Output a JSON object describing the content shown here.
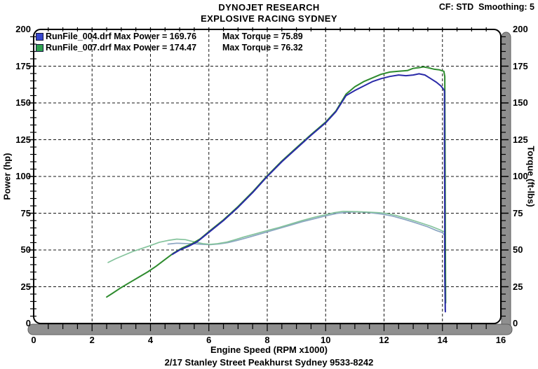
{
  "header": {
    "title": "DYNOJET RESEARCH",
    "subtitle": "EXPLOSIVE RACING SYDNEY",
    "settings": "CF: STD  Smoothing: 5"
  },
  "footer": {
    "address": "2/17 Stanley Street Peakhurst Sydney 9533-8242"
  },
  "chart_data": {
    "type": "line",
    "title": "DYNOJET RESEARCH",
    "subtitle": "EXPLOSIVE RACING SYDNEY",
    "xlabel": "Engine Speed (RPM x1000)",
    "ylabel_left": "Power (hp)",
    "ylabel_right": "Torque (ft-lbs)",
    "xlim": [
      0,
      16
    ],
    "ylim_left": [
      0,
      200
    ],
    "ylim_right": [
      0,
      200
    ],
    "x_major_ticks": [
      0,
      2,
      4,
      6,
      8,
      10,
      12,
      14,
      16
    ],
    "x_minor_step": 0.5,
    "y_major_ticks": [
      0,
      25,
      50,
      75,
      100,
      125,
      150,
      175,
      200
    ],
    "y_minor_step": 5,
    "grid": "dashed",
    "grid_color": "#161616",
    "frame_shadow_color": "#8f8f8f",
    "legend_position": "top-left",
    "legend": [
      {
        "swatch_color": "#3646cf",
        "file": "RunFile_004.drf",
        "power_text": "RunFile_004.drf Max Power = 169.76",
        "torque_text": "Max Torque = 75.89",
        "max_power": 169.76,
        "max_torque": 75.89
      },
      {
        "swatch_color": "#2ea14e",
        "file": "RunFile_007.drf",
        "power_text": "RunFile_007.drf Max Power = 174.47",
        "torque_text": "Max Torque = 76.32",
        "max_power": 174.47,
        "max_torque": 76.32
      }
    ],
    "series": [
      {
        "name": "RunFile_004.drf Torque (ft-lbs)",
        "slug": "torque-curve-runfile-004",
        "color": "#8aa5c2",
        "width": 1.7,
        "points": [
          [
            4.6,
            54
          ],
          [
            4.9,
            54.6
          ],
          [
            5.2,
            54.4
          ],
          [
            5.5,
            54.2
          ],
          [
            5.8,
            53.8
          ],
          [
            6.05,
            53.6
          ],
          [
            6.35,
            54.1
          ],
          [
            6.65,
            55
          ],
          [
            6.95,
            56.4
          ],
          [
            7.25,
            58
          ],
          [
            7.6,
            60
          ],
          [
            8,
            62.3
          ],
          [
            8.4,
            64.6
          ],
          [
            8.8,
            66.9
          ],
          [
            9.2,
            69.2
          ],
          [
            9.6,
            71.2
          ],
          [
            10,
            73.2
          ],
          [
            10.4,
            74.9
          ],
          [
            10.8,
            75.7
          ],
          [
            11.1,
            75.9
          ],
          [
            11.5,
            75.4
          ],
          [
            11.9,
            74.5
          ],
          [
            12.3,
            73
          ],
          [
            12.7,
            70.8
          ],
          [
            13.1,
            68.4
          ],
          [
            13.5,
            65.7
          ],
          [
            13.8,
            63.2
          ],
          [
            14,
            61.8
          ],
          [
            14.05,
            60.5
          ],
          [
            14.07,
            60
          ],
          [
            14.08,
            30
          ],
          [
            14.09,
            9
          ]
        ]
      },
      {
        "name": "RunFile_007.drf Torque (ft-lbs)",
        "slug": "torque-curve-runfile-007",
        "color": "#84c39c",
        "width": 1.7,
        "points": [
          [
            2.55,
            41.5
          ],
          [
            2.8,
            44
          ],
          [
            3.1,
            46.5
          ],
          [
            3.4,
            49
          ],
          [
            3.7,
            51
          ],
          [
            4,
            53
          ],
          [
            4.3,
            55.2
          ],
          [
            4.6,
            56.5
          ],
          [
            4.9,
            57.4
          ],
          [
            5.2,
            57
          ],
          [
            5.5,
            55.5
          ],
          [
            5.8,
            54.3
          ],
          [
            6.05,
            53.8
          ],
          [
            6.3,
            54.3
          ],
          [
            6.6,
            55.3
          ],
          [
            6.9,
            57
          ],
          [
            7.2,
            58.8
          ],
          [
            7.6,
            61
          ],
          [
            8,
            63.2
          ],
          [
            8.4,
            65.3
          ],
          [
            8.8,
            67.6
          ],
          [
            9.2,
            70
          ],
          [
            9.6,
            72.2
          ],
          [
            10,
            74
          ],
          [
            10.3,
            75.4
          ],
          [
            10.6,
            76.3
          ],
          [
            11,
            76.1
          ],
          [
            11.4,
            75.8
          ],
          [
            11.8,
            75.4
          ],
          [
            12.1,
            74.8
          ],
          [
            12.4,
            73.5
          ],
          [
            12.8,
            71.3
          ],
          [
            13.2,
            68.8
          ],
          [
            13.6,
            66.2
          ],
          [
            13.9,
            63.8
          ],
          [
            14.05,
            62.5
          ],
          [
            14.08,
            62
          ],
          [
            14.09,
            40
          ],
          [
            14.1,
            17
          ]
        ]
      },
      {
        "name": "RunFile_007.drf Power (hp)",
        "slug": "power-curve-runfile-007",
        "color": "#2e8b2e",
        "width": 2,
        "points": [
          [
            2.5,
            18
          ],
          [
            2.7,
            20.5
          ],
          [
            3,
            24.5
          ],
          [
            3.3,
            28
          ],
          [
            3.6,
            31.5
          ],
          [
            3.9,
            35
          ],
          [
            4.2,
            39
          ],
          [
            4.5,
            43.5
          ],
          [
            4.8,
            48
          ],
          [
            5.1,
            51.5
          ],
          [
            5.4,
            54
          ],
          [
            5.7,
            57.5
          ],
          [
            6,
            62.5
          ],
          [
            6.5,
            70.5
          ],
          [
            7,
            79.5
          ],
          [
            7.5,
            89.5
          ],
          [
            8,
            100.5
          ],
          [
            8.5,
            110.5
          ],
          [
            9,
            119.5
          ],
          [
            9.5,
            128.5
          ],
          [
            10,
            137
          ],
          [
            10.35,
            144.5
          ],
          [
            10.7,
            156
          ],
          [
            11,
            161
          ],
          [
            11.3,
            164.5
          ],
          [
            11.6,
            167
          ],
          [
            11.9,
            169.5
          ],
          [
            12.2,
            171
          ],
          [
            12.5,
            171.5
          ],
          [
            12.8,
            172
          ],
          [
            13,
            173.5
          ],
          [
            13.2,
            174
          ],
          [
            13.35,
            174.5
          ],
          [
            13.5,
            174
          ],
          [
            13.7,
            173
          ],
          [
            13.9,
            172.5
          ],
          [
            14.05,
            171.5
          ],
          [
            14.08,
            168
          ],
          [
            14.09,
            120
          ],
          [
            14.1,
            60
          ],
          [
            14.11,
            14
          ]
        ]
      },
      {
        "name": "RunFile_004.drf Power (hp)",
        "slug": "power-curve-runfile-004",
        "color": "#2a2aa8",
        "width": 2,
        "points": [
          [
            4.75,
            47
          ],
          [
            5,
            50
          ],
          [
            5.3,
            52.5
          ],
          [
            5.6,
            55.5
          ],
          [
            6,
            62
          ],
          [
            6.5,
            70
          ],
          [
            7,
            79
          ],
          [
            7.5,
            89
          ],
          [
            8,
            100
          ],
          [
            8.5,
            110
          ],
          [
            9,
            119
          ],
          [
            9.5,
            128
          ],
          [
            10,
            136.5
          ],
          [
            10.35,
            144
          ],
          [
            10.7,
            155
          ],
          [
            11,
            158.5
          ],
          [
            11.3,
            161.5
          ],
          [
            11.6,
            164.5
          ],
          [
            11.9,
            166.5
          ],
          [
            12.2,
            168
          ],
          [
            12.5,
            169
          ],
          [
            12.75,
            168.5
          ],
          [
            13,
            169
          ],
          [
            13.2,
            169.8
          ],
          [
            13.4,
            169
          ],
          [
            13.6,
            166.5
          ],
          [
            13.8,
            164
          ],
          [
            13.95,
            161.5
          ],
          [
            14.05,
            159
          ],
          [
            14.07,
            158
          ],
          [
            14.07,
            120
          ],
          [
            14.08,
            80
          ],
          [
            14.08,
            35
          ],
          [
            14.1,
            8
          ]
        ]
      }
    ]
  }
}
